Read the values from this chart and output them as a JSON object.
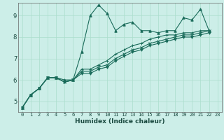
{
  "xlabel": "Humidex (Indice chaleur)",
  "ylabel": "",
  "bg_color": "#cceee8",
  "line_color": "#1a6b5a",
  "grid_color": "#aaddcc",
  "xlim": [
    -0.5,
    23.5
  ],
  "ylim": [
    4.5,
    9.6
  ],
  "xticks": [
    0,
    1,
    2,
    3,
    4,
    5,
    6,
    7,
    8,
    9,
    10,
    11,
    12,
    13,
    14,
    15,
    16,
    17,
    18,
    19,
    20,
    21,
    22,
    23
  ],
  "yticks": [
    5,
    6,
    7,
    8,
    9
  ],
  "series": [
    [
      4.7,
      5.3,
      5.6,
      6.1,
      6.1,
      6.0,
      6.0,
      7.3,
      9.0,
      9.5,
      9.1,
      8.3,
      8.6,
      8.7,
      8.3,
      8.3,
      8.2,
      8.3,
      8.3,
      8.9,
      8.8,
      9.3,
      8.3
    ],
    [
      4.7,
      5.3,
      5.6,
      6.1,
      6.1,
      5.9,
      6.0,
      6.5,
      6.5,
      6.7,
      6.9,
      7.2,
      7.4,
      7.6,
      7.7,
      7.9,
      8.0,
      8.1,
      8.1,
      8.2,
      8.2,
      8.3,
      8.3
    ],
    [
      4.7,
      5.3,
      5.6,
      6.1,
      6.1,
      5.9,
      6.0,
      6.4,
      6.4,
      6.6,
      6.7,
      7.0,
      7.2,
      7.4,
      7.5,
      7.7,
      7.8,
      7.9,
      8.0,
      8.1,
      8.1,
      8.2,
      8.3
    ],
    [
      4.7,
      5.3,
      5.6,
      6.1,
      6.1,
      5.9,
      6.0,
      6.3,
      6.3,
      6.5,
      6.6,
      6.9,
      7.1,
      7.3,
      7.4,
      7.6,
      7.7,
      7.8,
      7.9,
      8.0,
      8.0,
      8.1,
      8.2
    ]
  ],
  "tick_fontsize": 5.0,
  "xlabel_fontsize": 6.5,
  "xlabel_fontweight": "bold"
}
